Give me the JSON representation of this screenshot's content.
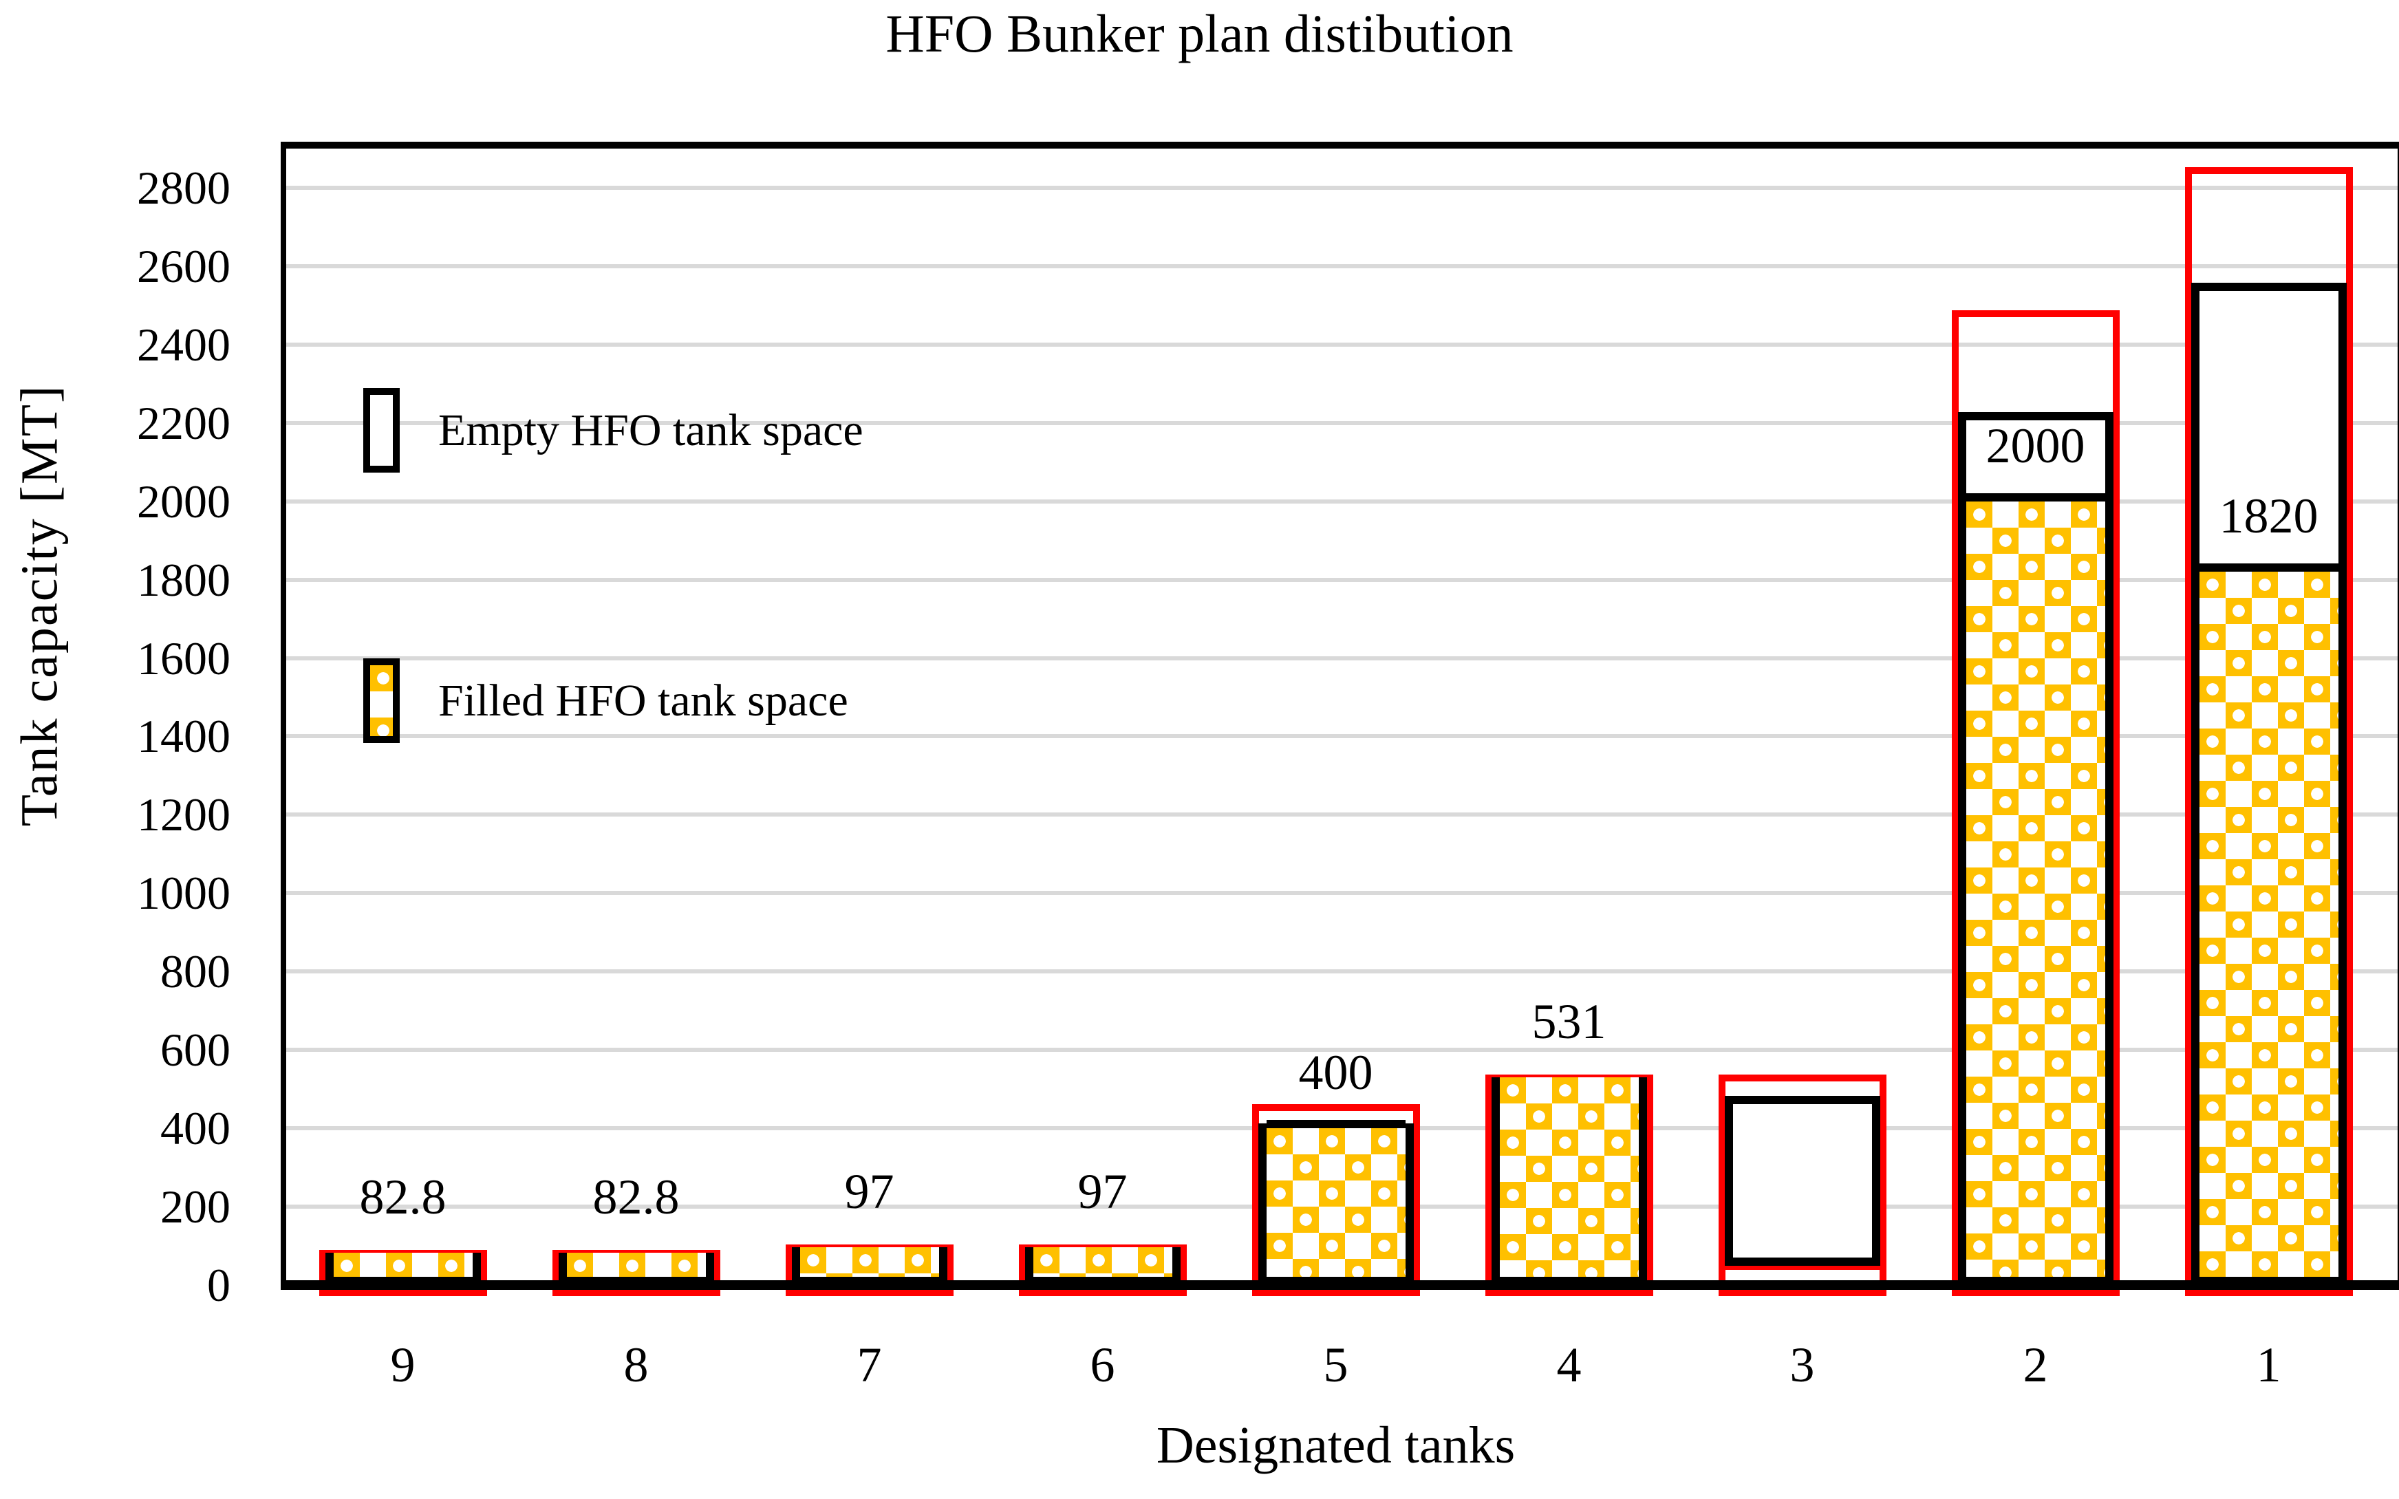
{
  "title": "HFO Bunker plan distibution",
  "colors": {
    "filled_pattern_orange": "#FFC000",
    "capacity_outline_red": "#FF0000",
    "bar_border_black": "#000000",
    "gridline_gray": "#D9D9D9"
  },
  "legend": {
    "items": [
      {
        "label": "Empty HFO tank space",
        "swatch": "empty-white-box"
      },
      {
        "label": "Filled HFO tank space",
        "swatch": "orange-checker-box"
      }
    ]
  },
  "chart_data": {
    "type": "bar",
    "stacked": true,
    "title": "HFO Bunker plan distibution",
    "xlabel": "Designated tanks",
    "ylabel": "Tank capacity [MT]",
    "ylim": [
      0,
      2900
    ],
    "ytick_step": 200,
    "ytick_labels": [
      "0",
      "200",
      "400",
      "600",
      "800",
      "1000",
      "1200",
      "1400",
      "1600",
      "1800",
      "2000",
      "2200",
      "2400",
      "2600",
      "2800"
    ],
    "grid": true,
    "legend_position": "inside-top-left",
    "categories": [
      "9",
      "8",
      "7",
      "6",
      "5",
      "4",
      "3",
      "2",
      "1"
    ],
    "series": [
      {
        "name": "Filled HFO tank space",
        "values": [
          82.8,
          82.8,
          97,
          97,
          400,
          531,
          0,
          2000,
          1820
        ]
      },
      {
        "name": "Empty HFO tank space",
        "values": [
          0,
          0,
          0,
          0,
          13,
          0,
          433,
          228,
          737
        ]
      },
      {
        "name": "Tank capacity (red outline)",
        "values": [
          82.8,
          82.8,
          97,
          97,
          455,
          531,
          531,
          2480,
          2845
        ]
      }
    ],
    "bars": [
      {
        "category": "9",
        "filled": 82.8,
        "bar_bottom": 0,
        "bar_top": 82.8,
        "capacity": 82.8,
        "label": "82.8"
      },
      {
        "category": "8",
        "filled": 82.8,
        "bar_bottom": 0,
        "bar_top": 82.8,
        "capacity": 82.8,
        "label": "82.8"
      },
      {
        "category": "7",
        "filled": 97,
        "bar_bottom": 0,
        "bar_top": 97,
        "capacity": 97,
        "label": "97"
      },
      {
        "category": "6",
        "filled": 97,
        "bar_bottom": 0,
        "bar_top": 97,
        "capacity": 97,
        "label": "97"
      },
      {
        "category": "5",
        "filled": 400,
        "bar_bottom": 0,
        "bar_top": 413,
        "capacity": 455,
        "label": "400"
      },
      {
        "category": "4",
        "filled": 531,
        "bar_bottom": 0,
        "bar_top": 531,
        "capacity": 531,
        "label": "531"
      },
      {
        "category": "3",
        "filled": 0,
        "bar_bottom": 50,
        "bar_top": 483,
        "capacity": 531,
        "secondary_red_top": 50,
        "label": ""
      },
      {
        "category": "2",
        "filled": 2000,
        "bar_bottom": 0,
        "bar_top": 2228,
        "capacity": 2480,
        "label": "2000"
      },
      {
        "category": "1",
        "filled": 1820,
        "bar_bottom": 0,
        "bar_top": 2557,
        "capacity": 2845,
        "label": "1820"
      }
    ]
  }
}
